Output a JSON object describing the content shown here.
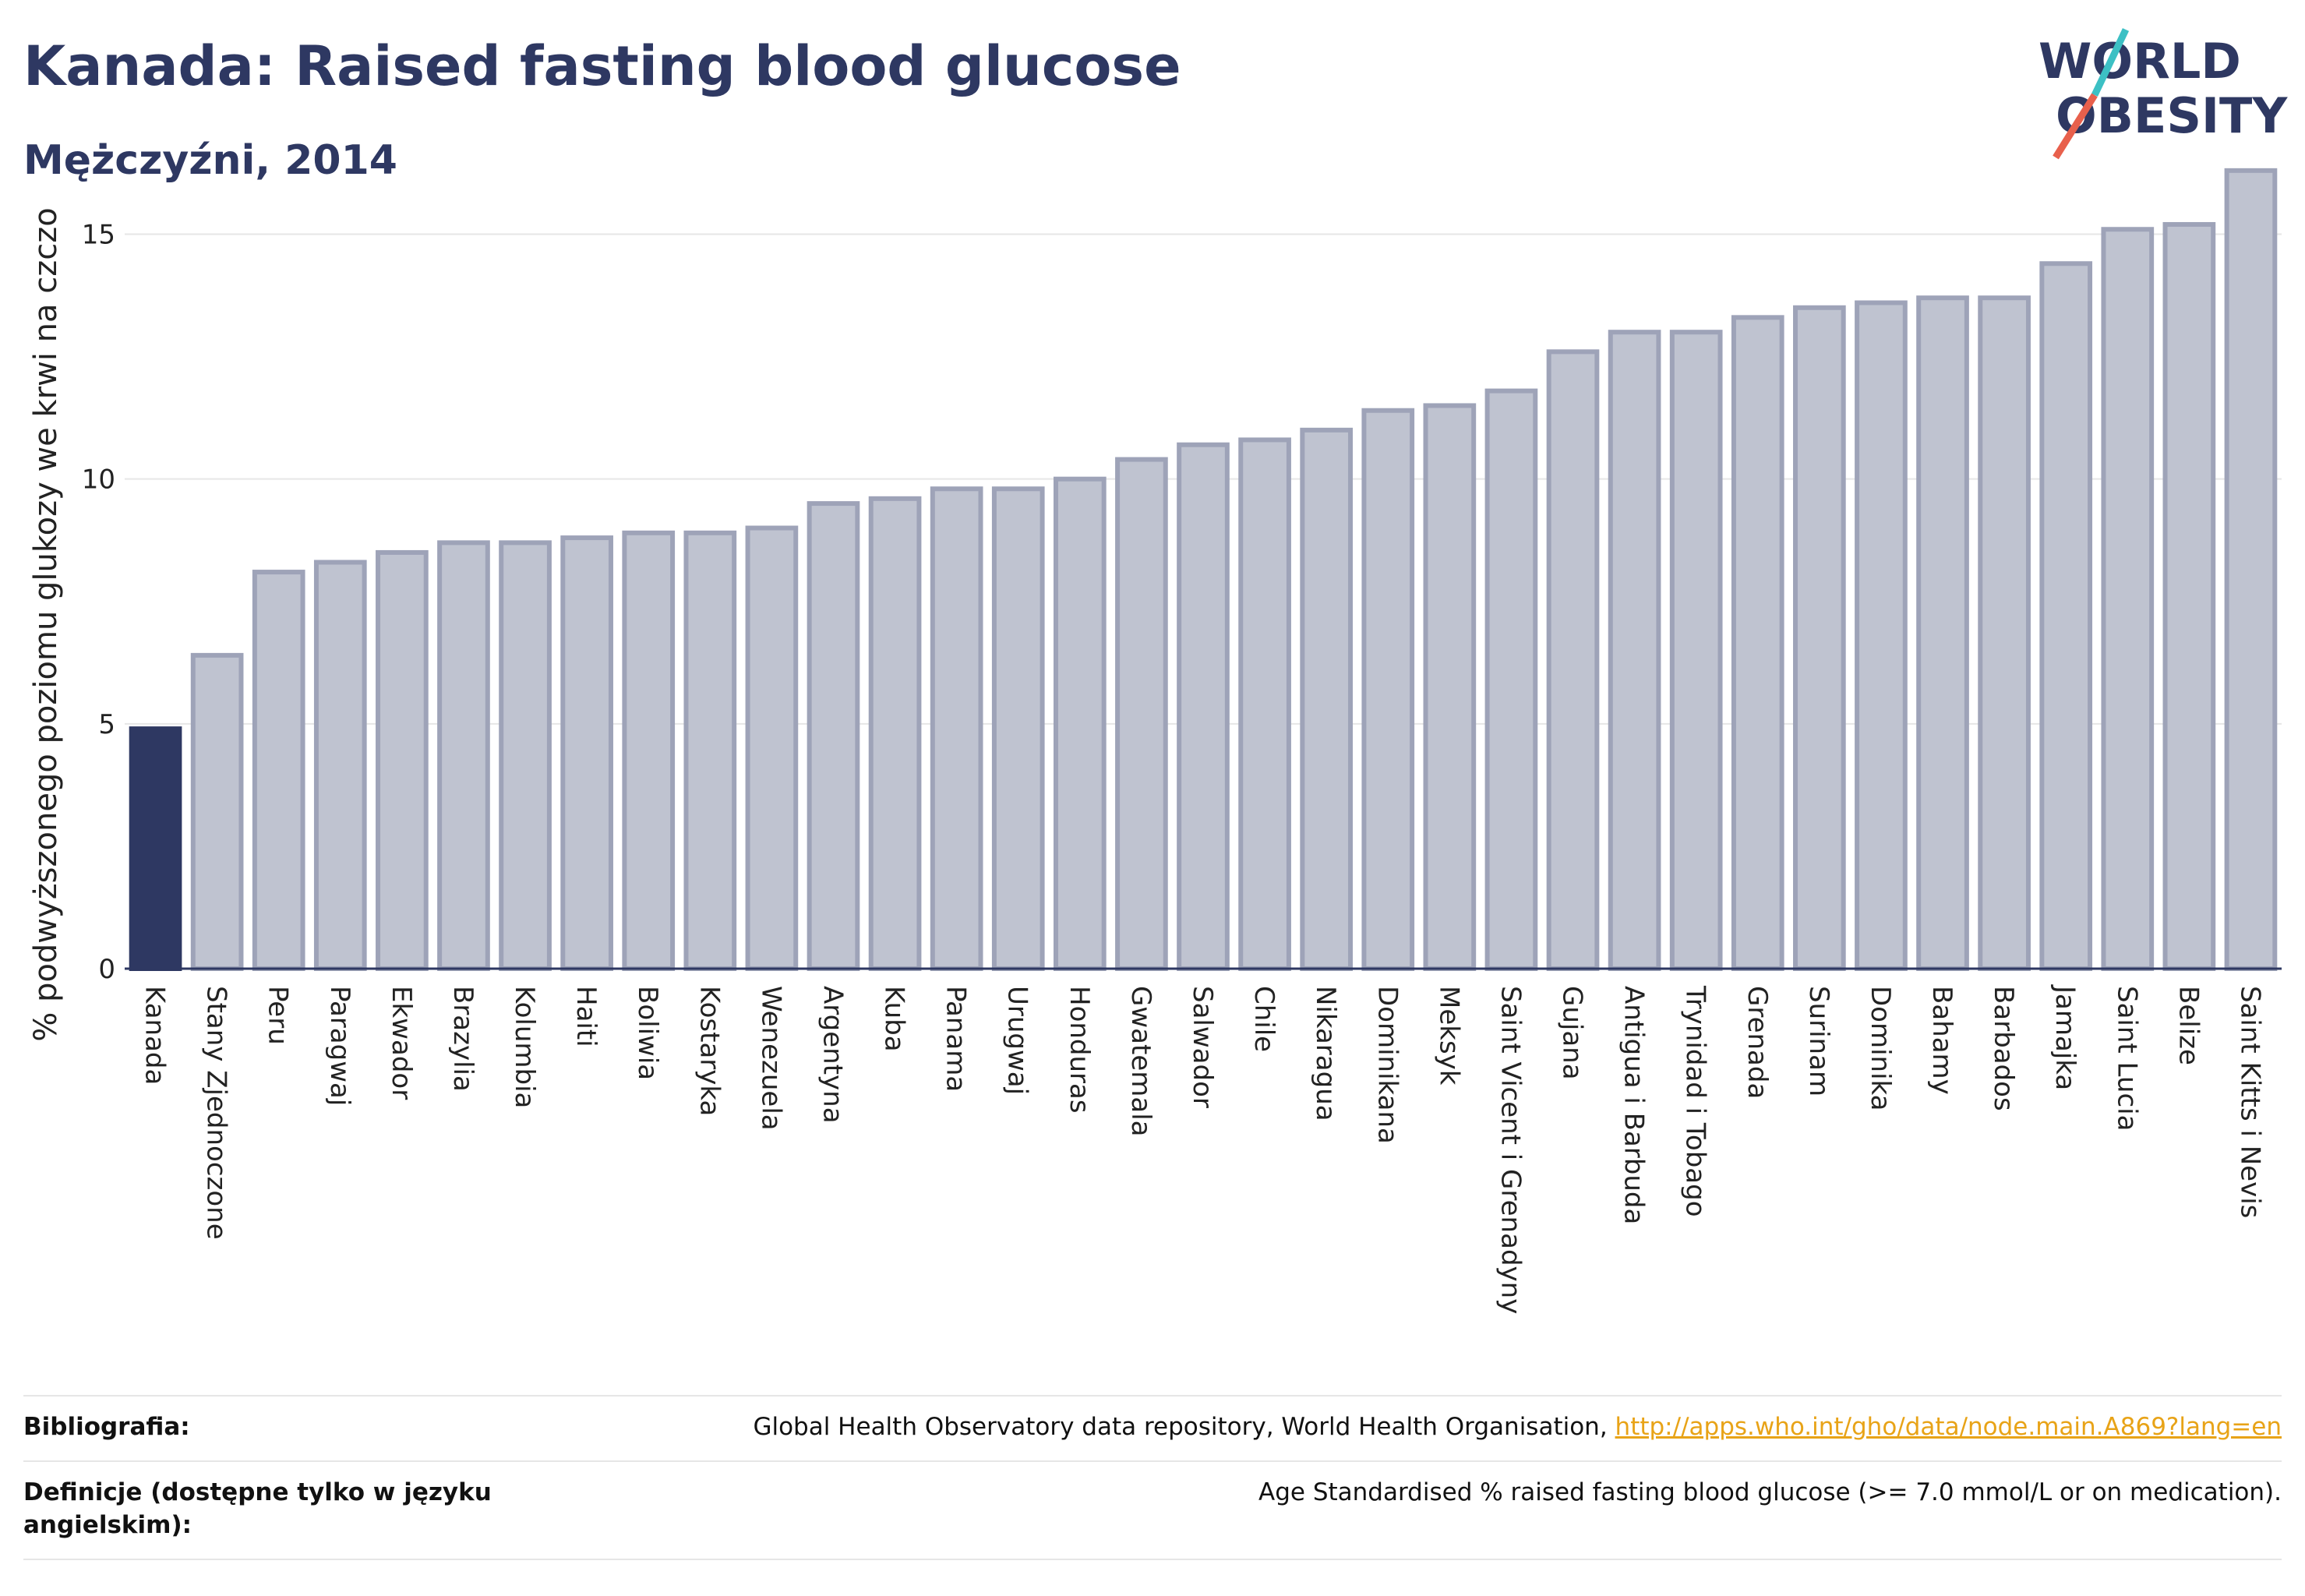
{
  "header": {
    "title": "Kanada: Raised fasting blood glucose",
    "subtitle": "Mężczyźni, 2014"
  },
  "logo": {
    "line1": "WORLD",
    "line2": "OBESITY",
    "colors": {
      "text": "#2e3862",
      "teal": "#3cc0c4",
      "red": "#e8604c"
    }
  },
  "chart_data": {
    "type": "bar",
    "title": "",
    "xlabel": "",
    "ylabel": "% podwyższonego poziomu glukozy we krwi na czczo",
    "ylim": [
      0,
      16.6
    ],
    "yticks": [
      0,
      5,
      10,
      15
    ],
    "grid": true,
    "highlight_category": "Kanada",
    "colors": {
      "highlight": "#2e3862",
      "bar": "#bfc3d0",
      "bar_edge": "#9ea3b8"
    },
    "categories": [
      "Kanada",
      "Stany Zjednoczone",
      "Peru",
      "Paragwaj",
      "Ekwador",
      "Brazylia",
      "Kolumbia",
      "Haiti",
      "Boliwia",
      "Kostaryka",
      "Wenezuela",
      "Argentyna",
      "Kuba",
      "Panama",
      "Urugwaj",
      "Honduras",
      "Gwatemala",
      "Salwador",
      "Chile",
      "Nikaragua",
      "Dominikana",
      "Meksyk",
      "Saint Vicent i Grenadyny",
      "Gujana",
      "Antigua i Barbuda",
      "Trynidad i Tobago",
      "Grenada",
      "Surinam",
      "Dominika",
      "Bahamy",
      "Barbados",
      "Jamajka",
      "Saint Lucia",
      "Belize",
      "Saint Kitts i Nevis"
    ],
    "values": [
      4.9,
      6.4,
      8.1,
      8.3,
      8.5,
      8.7,
      8.7,
      8.8,
      8.9,
      8.9,
      9.0,
      9.5,
      9.6,
      9.8,
      9.8,
      10.0,
      10.4,
      10.7,
      10.8,
      11.0,
      11.4,
      11.5,
      11.8,
      12.6,
      13.0,
      13.0,
      13.3,
      13.5,
      13.6,
      13.7,
      13.7,
      14.4,
      15.1,
      15.2,
      16.3
    ]
  },
  "footer": {
    "bibliography_label": "Bibliografia:",
    "bibliography_text": "Global Health Observatory data repository, World Health Organisation, ",
    "bibliography_link": "http://apps.who.int/gho/data/node.main.A869?lang=en",
    "definitions_label": "Definicje (dostępne tylko w języku angielskim):",
    "definitions_text": "Age Standardised % raised fasting blood glucose (>= 7.0 mmol/L or on medication)."
  }
}
